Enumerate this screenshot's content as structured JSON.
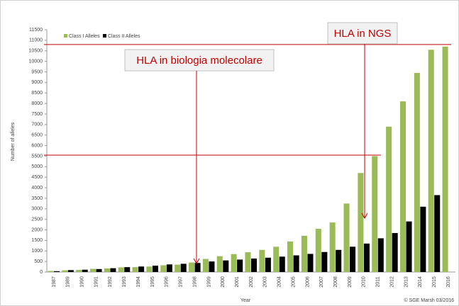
{
  "chart_data": {
    "type": "bar",
    "y_label": "Number of alleles",
    "x_label": "Year",
    "credit": "© SGE Marsh 03/2016",
    "categories": [
      "1987",
      "1989",
      "1990",
      "1991",
      "1992",
      "1993",
      "1994",
      "1995",
      "1996",
      "1997",
      "1998",
      "1999",
      "2000",
      "2001",
      "2002",
      "2003",
      "2004",
      "2005",
      "2006",
      "2007",
      "2008",
      "2009",
      "2010",
      "2011",
      "2012",
      "2013",
      "2014",
      "2015",
      "2016"
    ],
    "series": [
      {
        "name": "Class I Alleles",
        "color": "#9bbb59",
        "values": [
          50,
          80,
          100,
          150,
          170,
          220,
          230,
          260,
          320,
          350,
          450,
          620,
          750,
          850,
          940,
          1050,
          1200,
          1450,
          1720,
          2050,
          2350,
          3250,
          4700,
          5500,
          6900,
          8100,
          9450,
          10550,
          10700
        ]
      },
      {
        "name": "Class II Alleles",
        "color": "#000000",
        "values": [
          40,
          90,
          110,
          140,
          180,
          230,
          260,
          300,
          360,
          390,
          430,
          500,
          550,
          590,
          640,
          680,
          730,
          790,
          860,
          950,
          1050,
          1200,
          1350,
          1600,
          1850,
          2400,
          3100,
          3650,
          null
        ]
      }
    ],
    "ylim": [
      0,
      11500
    ],
    "yticks": [
      0,
      500,
      1000,
      1500,
      2000,
      2500,
      3000,
      3500,
      4000,
      4500,
      5000,
      5500,
      6000,
      6500,
      7000,
      7500,
      8000,
      8500,
      9000,
      9500,
      10000,
      10500,
      11000,
      11500
    ],
    "reference_lines": [
      10800,
      5550
    ],
    "annotations": [
      "HLA in biologia molecolare",
      "HLA in NGS"
    ]
  }
}
